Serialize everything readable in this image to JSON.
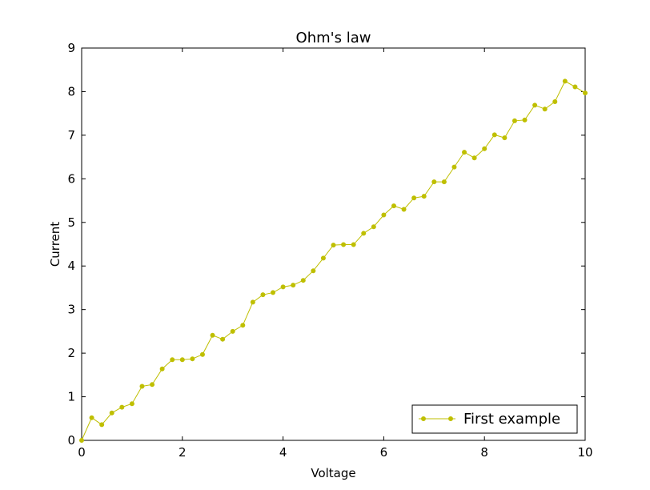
{
  "chart_data": {
    "type": "line",
    "title": "Ohm's law",
    "xlabel": "Voltage",
    "ylabel": "Current",
    "xlim": [
      0,
      10
    ],
    "ylim": [
      0,
      9
    ],
    "xticks": [
      0,
      2,
      4,
      6,
      8,
      10
    ],
    "yticks": [
      0,
      1,
      2,
      3,
      4,
      5,
      6,
      7,
      8,
      9
    ],
    "grid": false,
    "legend_position": "lower-right",
    "series": [
      {
        "name": "First example",
        "color": "#bfbf00",
        "marker": "circle",
        "x": [
          0.0,
          0.2,
          0.4,
          0.6,
          0.8,
          1.0,
          1.2,
          1.4,
          1.6,
          1.8,
          2.0,
          2.2,
          2.4,
          2.6,
          2.8,
          3.0,
          3.2,
          3.4,
          3.6,
          3.8,
          4.0,
          4.2,
          4.4,
          4.6,
          4.8,
          5.0,
          5.2,
          5.4,
          5.6,
          5.8,
          6.0,
          6.2,
          6.4,
          6.6,
          6.8,
          7.0,
          7.2,
          7.4,
          7.6,
          7.8,
          8.0,
          8.2,
          8.4,
          8.6,
          8.8,
          9.0,
          9.2,
          9.4,
          9.6,
          9.8,
          10.0
        ],
        "y": [
          0.0,
          0.52,
          0.36,
          0.63,
          0.76,
          0.84,
          1.24,
          1.28,
          1.64,
          1.85,
          1.85,
          1.87,
          1.97,
          2.41,
          2.32,
          2.5,
          2.64,
          3.17,
          3.34,
          3.39,
          3.52,
          3.56,
          3.67,
          3.89,
          4.18,
          4.48,
          4.49,
          4.49,
          4.75,
          4.9,
          5.17,
          5.38,
          5.3,
          5.56,
          5.6,
          5.93,
          5.93,
          6.27,
          6.61,
          6.48,
          6.69,
          7.01,
          6.94,
          7.33,
          7.35,
          7.69,
          7.6,
          7.77,
          8.24,
          8.11,
          7.97
        ]
      }
    ]
  }
}
